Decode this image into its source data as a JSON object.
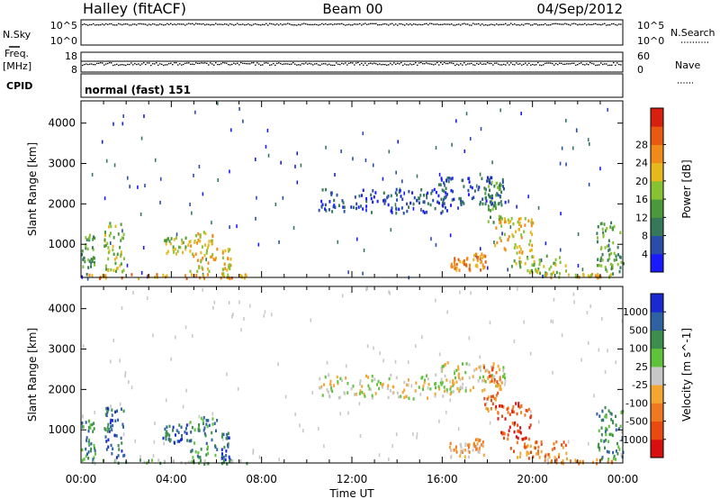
{
  "header": {
    "station": "Halley (fitACF)",
    "beam": "Beam 00",
    "date": "04/Sep/2012"
  },
  "left_labels": {
    "nsky": "N.Sky",
    "freq_line1": "Freq.",
    "freq_line2": "[MHz]",
    "cpid": "CPID"
  },
  "right_labels": {
    "nsearch": "N.Search",
    "nave": "Nave"
  },
  "cpid_text": "normal (fast) 151",
  "colors": {
    "power": [
      "#1a1aff",
      "#2a4ea8",
      "#35795a",
      "#4a9a3c",
      "#86c232",
      "#e6b81e",
      "#f08a18",
      "#e85a10",
      "#d82010"
    ],
    "velocity": [
      "#d80f0f",
      "#e84a10",
      "#f07820",
      "#f4a630",
      "#c8c8c8",
      "#5ec23a",
      "#3d8e4c",
      "#2e62a0",
      "#1a2ad0"
    ]
  },
  "chart_data": [
    {
      "type": "scatter",
      "name": "noise",
      "left_axis_label": "N.Sky",
      "right_axis_label": "N.Search",
      "left_ticks": [
        "10^5",
        "10^0"
      ],
      "right_ticks": [
        "10^5",
        "10^0"
      ],
      "ylim": [
        0,
        5
      ],
      "series": [
        {
          "name": "N.Sky",
          "approx_constant_log10": 4.7
        },
        {
          "name": "N.Search",
          "approx_constant_log10": 4.7
        }
      ]
    },
    {
      "type": "scatter",
      "name": "frequency",
      "left_axis_label": "Freq. [MHz]",
      "right_axis_label": "Nave",
      "left_ticks": [
        18,
        8
      ],
      "right_ticks": [
        60,
        0
      ],
      "freq_ylim": [
        8,
        18
      ],
      "nave_ylim": [
        0,
        60
      ],
      "series": [
        {
          "name": "Freq. [MHz]",
          "approx_constant": 12.3
        },
        {
          "name": "Nave",
          "approx_constant": 36
        }
      ]
    },
    {
      "type": "heatmap",
      "name": "power",
      "ylabel": "Slant Range [km]",
      "yticks": [
        1000,
        2000,
        3000,
        4000
      ],
      "ylim": [
        180,
        4550
      ],
      "xlim_hours": [
        0,
        24
      ],
      "colorbar_label": "Power [dB]",
      "colorbar_ticks": [
        "4",
        "8",
        "12",
        "16",
        "20",
        "24",
        "28"
      ],
      "colorbar_range": [
        0,
        32
      ],
      "clusters": [
        {
          "start_h": 0.0,
          "end_h": 0.6,
          "range_low_km": 220,
          "range_high_km": 1300,
          "level": 3
        },
        {
          "start_h": 1.0,
          "end_h": 1.9,
          "range_low_km": 350,
          "range_high_km": 1600,
          "level": 4
        },
        {
          "start_h": 3.6,
          "end_h": 4.8,
          "range_low_km": 800,
          "range_high_km": 1200,
          "level": 4
        },
        {
          "start_h": 4.8,
          "end_h": 6.0,
          "range_low_km": 350,
          "range_high_km": 1350,
          "level": 5
        },
        {
          "start_h": 6.2,
          "end_h": 6.6,
          "range_low_km": 200,
          "range_high_km": 950,
          "level": 5
        },
        {
          "start_h": 0.0,
          "end_h": 7.5,
          "range_low_km": 190,
          "range_high_km": 290,
          "level": 6
        },
        {
          "start_h": 10.5,
          "end_h": 16.8,
          "range_low_km": 1800,
          "range_high_km": 2400,
          "level": 1
        },
        {
          "start_h": 15.8,
          "end_h": 18.8,
          "range_low_km": 2000,
          "range_high_km": 2700,
          "level": 1
        },
        {
          "start_h": 16.3,
          "end_h": 17.2,
          "range_low_km": 350,
          "range_high_km": 700,
          "level": 6
        },
        {
          "start_h": 17.3,
          "end_h": 17.9,
          "range_low_km": 400,
          "range_high_km": 800,
          "level": 6
        },
        {
          "start_h": 17.8,
          "end_h": 18.6,
          "range_low_km": 1500,
          "range_high_km": 2600,
          "level": 3
        },
        {
          "start_h": 18.3,
          "end_h": 20.0,
          "range_low_km": 800,
          "range_high_km": 1700,
          "level": 5
        },
        {
          "start_h": 19.0,
          "end_h": 21.5,
          "range_low_km": 300,
          "range_high_km": 750,
          "level": 4
        },
        {
          "start_h": 20.5,
          "end_h": 23.6,
          "range_low_km": 200,
          "range_high_km": 300,
          "level": 5
        },
        {
          "start_h": 22.8,
          "end_h": 24.0,
          "range_low_km": 300,
          "range_high_km": 1600,
          "level": 3
        }
      ]
    },
    {
      "type": "heatmap",
      "name": "velocity",
      "ylabel": "Slant Range [km]",
      "yticks": [
        1000,
        2000,
        3000,
        4000
      ],
      "ylim": [
        180,
        4550
      ],
      "xlim_hours": [
        0,
        24
      ],
      "colorbar_label": "Velocity [m s^-1]",
      "colorbar_ticks": [
        "-1000",
        "-500",
        "-100",
        "-25",
        "25",
        "100",
        "500",
        "1000"
      ],
      "clusters": [
        {
          "start_h": 0.0,
          "end_h": 0.6,
          "range_low_km": 220,
          "range_high_km": 1300,
          "level": 6
        },
        {
          "start_h": 1.0,
          "end_h": 1.9,
          "range_low_km": 350,
          "range_high_km": 1600,
          "level": 7
        },
        {
          "start_h": 3.6,
          "end_h": 4.8,
          "range_low_km": 700,
          "range_high_km": 1200,
          "level": 7
        },
        {
          "start_h": 4.8,
          "end_h": 6.0,
          "range_low_km": 350,
          "range_high_km": 1350,
          "level": 6
        },
        {
          "start_h": 6.2,
          "end_h": 6.6,
          "range_low_km": 200,
          "range_high_km": 950,
          "level": 7
        },
        {
          "start_h": 0.0,
          "end_h": 7.5,
          "range_low_km": 190,
          "range_high_km": 290,
          "level": 5
        },
        {
          "start_h": 10.5,
          "end_h": 16.8,
          "range_low_km": 1800,
          "range_high_km": 2400,
          "level": 4
        },
        {
          "start_h": 15.8,
          "end_h": 18.8,
          "range_low_km": 2000,
          "range_high_km": 2700,
          "level": 4
        },
        {
          "start_h": 16.3,
          "end_h": 17.2,
          "range_low_km": 350,
          "range_high_km": 700,
          "level": 3
        },
        {
          "start_h": 17.3,
          "end_h": 17.9,
          "range_low_km": 400,
          "range_high_km": 800,
          "level": 3
        },
        {
          "start_h": 17.8,
          "end_h": 18.6,
          "range_low_km": 1500,
          "range_high_km": 2600,
          "level": 2
        },
        {
          "start_h": 18.3,
          "end_h": 20.0,
          "range_low_km": 800,
          "range_high_km": 1700,
          "level": 1
        },
        {
          "start_h": 19.0,
          "end_h": 21.5,
          "range_low_km": 300,
          "range_high_km": 750,
          "level": 2
        },
        {
          "start_h": 20.5,
          "end_h": 23.6,
          "range_low_km": 200,
          "range_high_km": 300,
          "level": 3
        },
        {
          "start_h": 22.8,
          "end_h": 24.0,
          "range_low_km": 300,
          "range_high_km": 1600,
          "level": 6
        }
      ]
    }
  ],
  "x_axis": {
    "ticks": [
      "00:00",
      "04:00",
      "08:00",
      "12:00",
      "16:00",
      "20:00",
      "00:00"
    ],
    "label": "Time UT"
  }
}
